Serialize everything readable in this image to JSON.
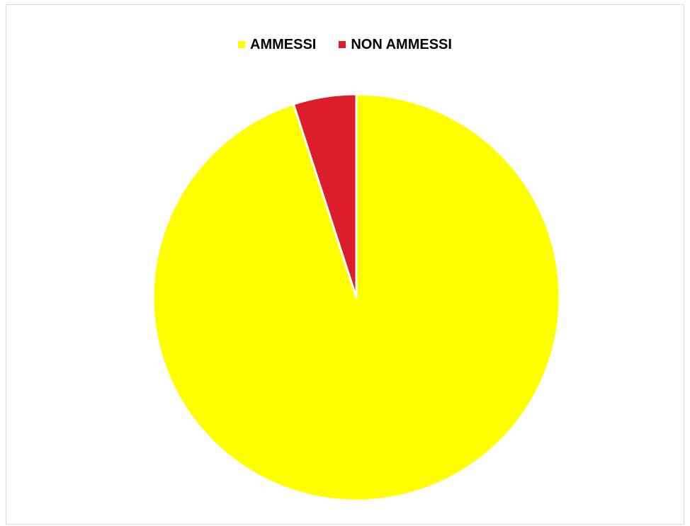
{
  "colors": {
    "ammessi": "#ffff00",
    "non_ammessi": "#dc1e2a",
    "slice_border": "#ffffff"
  },
  "chart_data": {
    "type": "pie",
    "title": "",
    "legend_position": "top-center",
    "slices": [
      {
        "label": "AMMESSI",
        "value": 95,
        "color": "#ffff00"
      },
      {
        "label": "NON AMMESSI",
        "value": 5,
        "color": "#dc1e2a"
      }
    ],
    "start_angle": "12-o'clock",
    "direction": "clockwise"
  }
}
